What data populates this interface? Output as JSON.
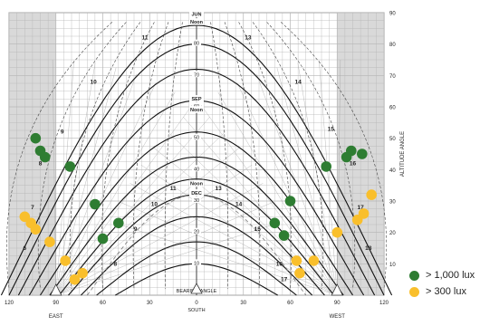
{
  "chart_data": {
    "type": "scatter",
    "description_free": true,
    "x_axis": {
      "label_top": "BEARING ANGLE",
      "label_bottom": "SOUTH",
      "range": [
        -120,
        120
      ],
      "tick_labels": [
        {
          "x": -120,
          "text": "120"
        },
        {
          "x": -90,
          "text": "90"
        },
        {
          "x": -60,
          "text": "60"
        },
        {
          "x": -30,
          "text": "30"
        },
        {
          "x": 0,
          "text": "0"
        },
        {
          "x": 30,
          "text": "30"
        },
        {
          "x": 60,
          "text": "60"
        },
        {
          "x": 90,
          "text": "90"
        },
        {
          "x": 120,
          "text": "120"
        }
      ],
      "side_labels": [
        {
          "x": -90,
          "text": "EAST"
        },
        {
          "x": 90,
          "text": "WEST"
        }
      ]
    },
    "y_axis": {
      "label": "ALTITUDE ANGLE",
      "range": [
        0,
        90
      ],
      "ticks": [
        10,
        20,
        30,
        40,
        50,
        60,
        70,
        80,
        90
      ]
    },
    "center_altitude_labels": [
      {
        "y": 10,
        "text": "10"
      },
      {
        "y": 20,
        "text": "20"
      },
      {
        "y": 30,
        "text": "30"
      },
      {
        "y": 40,
        "text": "40"
      },
      {
        "y": 50,
        "text": "50"
      },
      {
        "y": 60,
        "text": "60"
      },
      {
        "y": 70,
        "text": "70"
      },
      {
        "y": 80,
        "text": "80"
      }
    ],
    "month_labels": [
      {
        "x": 0,
        "y": 89,
        "text": "JUN"
      },
      {
        "x": 0,
        "y": 86.5,
        "text": "Noon"
      },
      {
        "x": 0,
        "y": 62,
        "text": "SEP"
      },
      {
        "x": 0,
        "y": 58.5,
        "text": "Noon"
      },
      {
        "x": 0,
        "y": 35,
        "text": "Noon"
      },
      {
        "x": 0,
        "y": 32,
        "text": "DEC"
      }
    ],
    "hour_labels": [
      {
        "x": -33,
        "y": 82,
        "text": "11"
      },
      {
        "x": 33,
        "y": 82,
        "text": "13"
      },
      {
        "x": -66,
        "y": 68,
        "text": "10"
      },
      {
        "x": 65,
        "y": 68,
        "text": "14"
      },
      {
        "x": -86,
        "y": 52,
        "text": "9"
      },
      {
        "x": 86,
        "y": 53,
        "text": "15"
      },
      {
        "x": -100,
        "y": 42,
        "text": "8"
      },
      {
        "x": 100,
        "y": 42,
        "text": "16"
      },
      {
        "x": -105,
        "y": 28,
        "text": "7"
      },
      {
        "x": 105,
        "y": 28,
        "text": "17"
      },
      {
        "x": -110,
        "y": 15,
        "text": "6"
      },
      {
        "x": 110,
        "y": 15,
        "text": "18"
      },
      {
        "x": -15,
        "y": 34,
        "text": "11"
      },
      {
        "x": 14,
        "y": 34,
        "text": "13"
      },
      {
        "x": -27,
        "y": 29,
        "text": "10"
      },
      {
        "x": 27,
        "y": 29,
        "text": "14"
      },
      {
        "x": -39,
        "y": 21,
        "text": "9"
      },
      {
        "x": 39,
        "y": 21,
        "text": "15"
      },
      {
        "x": -52,
        "y": 10,
        "text": "8"
      },
      {
        "x": 53,
        "y": 10,
        "text": "16"
      },
      {
        "x": 56,
        "y": 5,
        "text": "17"
      }
    ],
    "series": [
      {
        "name": "> 1,000 lux",
        "color": "#2e7d32",
        "points": [
          [
            -103,
            50
          ],
          [
            -100,
            46
          ],
          [
            -97,
            44
          ],
          [
            -81,
            41
          ],
          [
            -65,
            29
          ],
          [
            -50,
            23
          ],
          [
            -60,
            18
          ],
          [
            50,
            23
          ],
          [
            60,
            30
          ],
          [
            56,
            19
          ],
          [
            83,
            41
          ],
          [
            96,
            44
          ],
          [
            99,
            46
          ],
          [
            106,
            45
          ]
        ]
      },
      {
        "name": "> 300 lux",
        "color": "#f9bf2c",
        "points": [
          [
            -110,
            25
          ],
          [
            -106,
            23
          ],
          [
            -103,
            21
          ],
          [
            -94,
            17
          ],
          [
            -84,
            11
          ],
          [
            -78,
            5
          ],
          [
            -73,
            7
          ],
          [
            64,
            11
          ],
          [
            66,
            7
          ],
          [
            75,
            11
          ],
          [
            90,
            20
          ],
          [
            103,
            24
          ],
          [
            107,
            26
          ],
          [
            112,
            32
          ]
        ]
      }
    ]
  }
}
